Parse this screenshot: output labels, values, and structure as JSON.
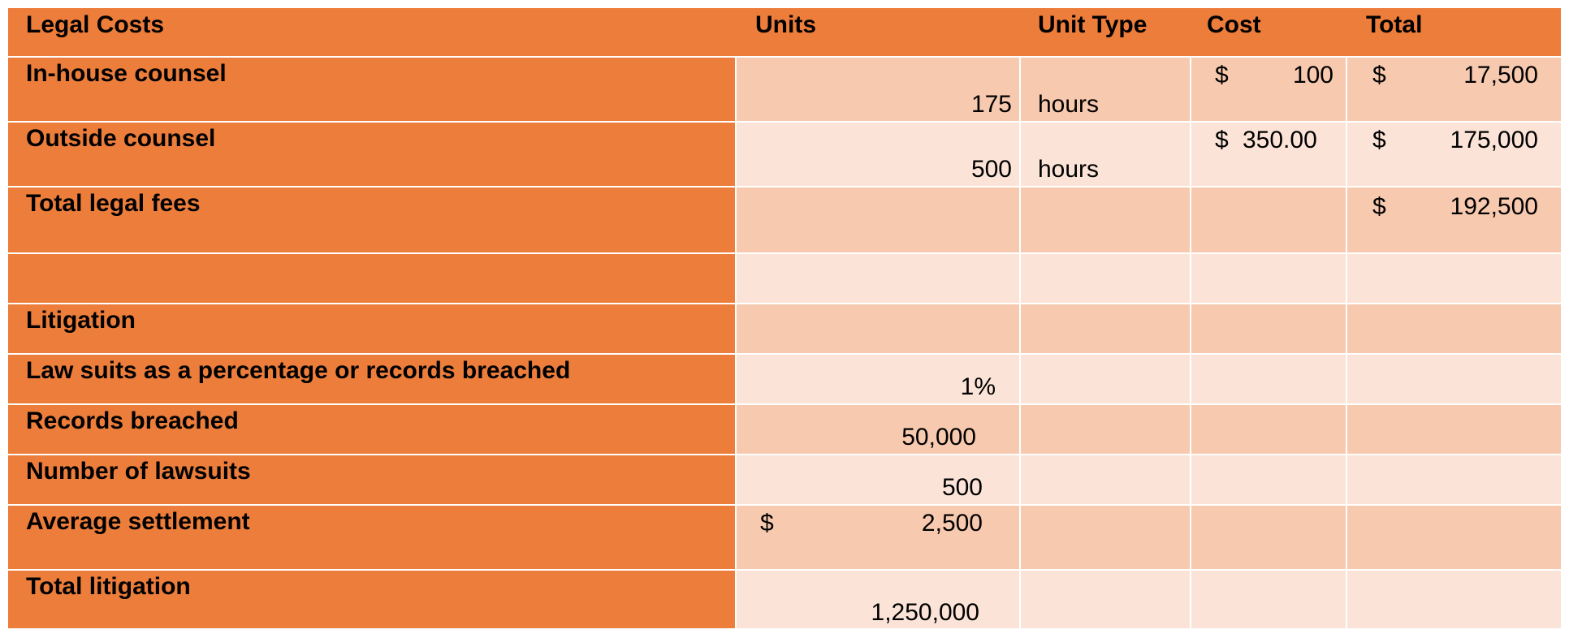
{
  "headers": {
    "legal_costs": "Legal Costs",
    "units": "Units",
    "unit_type": "Unit Type",
    "cost": "Cost",
    "total": "Total"
  },
  "rows": [
    {
      "label": "In-house counsel",
      "units": "175",
      "unit_type": "hours",
      "cost_symbol": "$",
      "cost": "100",
      "total_symbol": "$",
      "total": "17,500"
    },
    {
      "label": "Outside counsel",
      "units": "500",
      "unit_type": "hours",
      "cost_symbol": "$",
      "cost": "350.00",
      "total_symbol": "$",
      "total": "175,000"
    },
    {
      "label": "Total legal fees",
      "units": "",
      "unit_type": "",
      "cost_symbol": "",
      "cost": "",
      "total_symbol": "$",
      "total": "192,500"
    },
    {
      "label": "",
      "units": "",
      "unit_type": "",
      "cost_symbol": "",
      "cost": "",
      "total_symbol": "",
      "total": ""
    },
    {
      "label": "Litigation",
      "units": "",
      "unit_type": "",
      "cost_symbol": "",
      "cost": "",
      "total_symbol": "",
      "total": ""
    },
    {
      "label": "Law suits as a percentage or records breached",
      "units": "1%"
    },
    {
      "label": "Records breached",
      "units": "50,000"
    },
    {
      "label": "Number of lawsuits",
      "units": "500"
    },
    {
      "label": "Average settlement",
      "units_symbol": "$",
      "units": "2,500"
    },
    {
      "label": "Total litigation",
      "units": "1,250,000"
    }
  ],
  "colors": {
    "header_orange": "#ED7D3B",
    "band_dark": "#F7C9AF",
    "band_light": "#FBE4D7"
  }
}
